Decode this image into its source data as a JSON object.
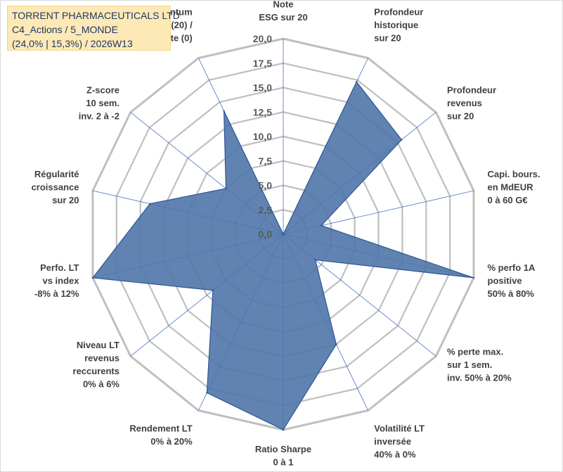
{
  "header": {
    "line1": "TORRENT PHARMACEUTICALS LTD",
    "line2": "C4_Actions / 5_MONDE",
    "line3": "(24,0% | 15,3%) / 2026W13"
  },
  "chart_data": {
    "type": "radar",
    "rmax": 20,
    "ticks": [
      "0,0",
      "2,5",
      "5,0",
      "7,5",
      "10,0",
      "12,5",
      "15,0",
      "17,5",
      "20,0"
    ],
    "axes": [
      [
        "Note",
        "ESG sur 20"
      ],
      [
        "Profondeur",
        "historique",
        "sur 20"
      ],
      [
        "Profondeur",
        "revenus",
        "sur 20"
      ],
      [
        "Capi. bours.",
        "en MdEUR",
        "0 à 60 G€"
      ],
      [
        "% perfo 1A",
        "positive",
        "50% à 80%"
      ],
      [
        "% perte max.",
        "sur 1 sem.",
        "inv. 50% à 20%"
      ],
      [
        "Volatilité LT",
        "inversée",
        "40% à 0%"
      ],
      [
        "Ratio Sharpe",
        "0 à 1"
      ],
      [
        "Rendement LT",
        "0% à 20%"
      ],
      [
        "Niveau LT",
        "revenus",
        "reccurents",
        "0% à 6%"
      ],
      [
        "Perfo. LT",
        "vs index",
        "-8% à 12%"
      ],
      [
        "Régularité",
        "croissance",
        "sur 20"
      ],
      [
        "Z-score",
        "10 sem.",
        "inv. 2 à -2"
      ],
      [
        "Momentum",
        "Achat (20) /",
        "Vente (0)"
      ]
    ],
    "series": [
      {
        "values": [
          0,
          17.3,
          15.5,
          4.0,
          20.0,
          4.2,
          12.5,
          20.0,
          18.0,
          9.2,
          20.0,
          14.0,
          7.5,
          14.0
        ]
      }
    ],
    "colors": {
      "fill": "#4f76a8",
      "line": "#2f5597",
      "grid": "#bfbfbf",
      "spoke": "#4472c4"
    }
  }
}
